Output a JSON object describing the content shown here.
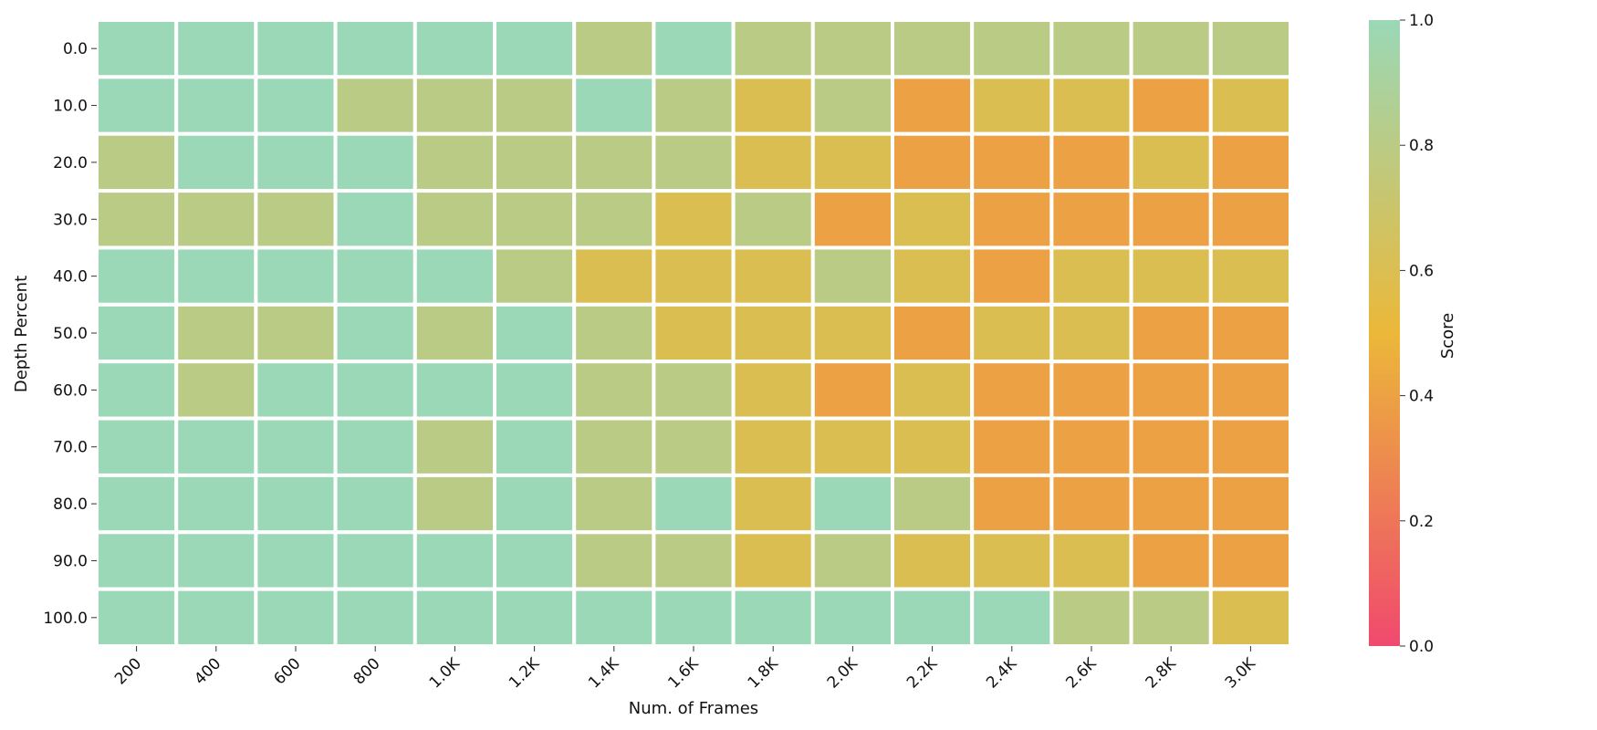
{
  "chart_data": {
    "type": "heatmap",
    "xlabel": "Num. of Frames",
    "ylabel": "Depth Percent",
    "x_categories": [
      "200",
      "400",
      "600",
      "800",
      "1.0K",
      "1.2K",
      "1.4K",
      "1.6K",
      "1.8K",
      "2.0K",
      "2.2K",
      "2.4K",
      "2.6K",
      "2.8K",
      "3.0K"
    ],
    "y_categories": [
      "0.0",
      "10.0",
      "20.0",
      "30.0",
      "40.0",
      "50.0",
      "60.0",
      "70.0",
      "80.0",
      "90.0",
      "100.0"
    ],
    "values": [
      [
        1.0,
        1.0,
        1.0,
        1.0,
        1.0,
        1.0,
        0.8,
        1.0,
        0.8,
        0.8,
        0.8,
        0.8,
        0.8,
        0.8,
        0.8
      ],
      [
        1.0,
        1.0,
        1.0,
        0.8,
        0.8,
        0.8,
        1.0,
        0.8,
        0.6,
        0.8,
        0.4,
        0.6,
        0.6,
        0.4,
        0.6
      ],
      [
        0.8,
        1.0,
        1.0,
        1.0,
        0.8,
        0.8,
        0.8,
        0.8,
        0.6,
        0.6,
        0.4,
        0.4,
        0.4,
        0.6,
        0.4
      ],
      [
        0.8,
        0.8,
        0.8,
        1.0,
        0.8,
        0.8,
        0.8,
        0.6,
        0.8,
        0.4,
        0.6,
        0.4,
        0.4,
        0.4,
        0.4
      ],
      [
        1.0,
        1.0,
        1.0,
        1.0,
        1.0,
        0.8,
        0.6,
        0.6,
        0.6,
        0.8,
        0.6,
        0.4,
        0.6,
        0.6,
        0.6
      ],
      [
        1.0,
        0.8,
        0.8,
        1.0,
        0.8,
        1.0,
        0.8,
        0.6,
        0.6,
        0.6,
        0.4,
        0.6,
        0.6,
        0.4,
        0.4
      ],
      [
        1.0,
        0.8,
        1.0,
        1.0,
        1.0,
        1.0,
        0.8,
        0.8,
        0.6,
        0.4,
        0.6,
        0.4,
        0.4,
        0.4,
        0.4
      ],
      [
        1.0,
        1.0,
        1.0,
        1.0,
        0.8,
        1.0,
        0.8,
        0.8,
        0.6,
        0.6,
        0.6,
        0.4,
        0.4,
        0.4,
        0.4
      ],
      [
        1.0,
        1.0,
        1.0,
        1.0,
        0.8,
        1.0,
        0.8,
        1.0,
        0.6,
        1.0,
        0.8,
        0.4,
        0.4,
        0.4,
        0.4
      ],
      [
        1.0,
        1.0,
        1.0,
        1.0,
        1.0,
        1.0,
        0.8,
        0.8,
        0.6,
        0.8,
        0.6,
        0.6,
        0.6,
        0.4,
        0.4
      ],
      [
        1.0,
        1.0,
        1.0,
        1.0,
        1.0,
        1.0,
        1.0,
        1.0,
        1.0,
        1.0,
        1.0,
        1.0,
        0.8,
        0.8,
        0.6
      ]
    ],
    "value_range": [
      0.0,
      1.0
    ],
    "colorbar": {
      "label": "Score",
      "ticks": [
        "0.0",
        "0.2",
        "0.4",
        "0.6",
        "0.8",
        "1.0"
      ],
      "colors": [
        "#F0496E",
        "#EBB839",
        "#9AD8B7"
      ]
    }
  }
}
